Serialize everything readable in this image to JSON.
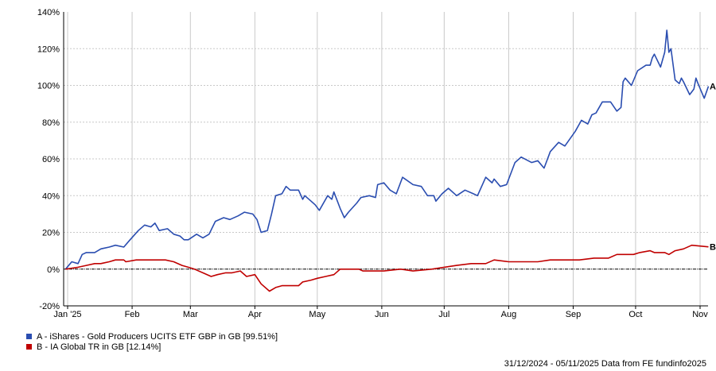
{
  "chart_data": {
    "type": "line",
    "title": "",
    "xlabel": "",
    "ylabel": "",
    "ylim": [
      -20,
      140
    ],
    "xlim": [
      "2024-12-31",
      "2025-11-05"
    ],
    "y_ticks": [
      "140%",
      "120%",
      "100%",
      "80%",
      "60%",
      "40%",
      "20%",
      "0%",
      "-20%"
    ],
    "y_tick_values": [
      140,
      120,
      100,
      80,
      60,
      40,
      20,
      0,
      -20
    ],
    "x_ticks": [
      {
        "label": "Jan '25",
        "date": "2025-01-01"
      },
      {
        "label": "Feb",
        "date": "2025-02-01"
      },
      {
        "label": "Mar",
        "date": "2025-03-01"
      },
      {
        "label": "Apr",
        "date": "2025-04-01"
      },
      {
        "label": "May",
        "date": "2025-05-01"
      },
      {
        "label": "Jun",
        "date": "2025-06-01"
      },
      {
        "label": "Jul",
        "date": "2025-07-01"
      },
      {
        "label": "Aug",
        "date": "2025-08-01"
      },
      {
        "label": "Sep",
        "date": "2025-09-01"
      },
      {
        "label": "Oct",
        "date": "2025-10-01"
      },
      {
        "label": "Nov",
        "date": "2025-11-01"
      }
    ],
    "grid": true,
    "legend_position": "bottom-left",
    "series": [
      {
        "name": "A - iShares - Gold Producers UCITS ETF GBP in GB [99.51%]",
        "end_label": "A",
        "color": "#2a4db0",
        "points": [
          [
            "2024-12-31",
            0
          ],
          [
            "2025-01-03",
            4
          ],
          [
            "2025-01-06",
            3
          ],
          [
            "2025-01-08",
            8
          ],
          [
            "2025-01-10",
            9
          ],
          [
            "2025-01-14",
            9
          ],
          [
            "2025-01-17",
            11
          ],
          [
            "2025-01-21",
            12
          ],
          [
            "2025-01-24",
            13
          ],
          [
            "2025-01-28",
            12
          ],
          [
            "2025-01-31",
            16
          ],
          [
            "2025-02-04",
            21
          ],
          [
            "2025-02-07",
            24
          ],
          [
            "2025-02-10",
            23
          ],
          [
            "2025-02-12",
            25
          ],
          [
            "2025-02-14",
            21
          ],
          [
            "2025-02-18",
            22
          ],
          [
            "2025-02-21",
            19
          ],
          [
            "2025-02-24",
            18
          ],
          [
            "2025-02-26",
            16
          ],
          [
            "2025-02-28",
            16
          ],
          [
            "2025-03-04",
            19
          ],
          [
            "2025-03-07",
            17
          ],
          [
            "2025-03-10",
            19
          ],
          [
            "2025-03-13",
            26
          ],
          [
            "2025-03-17",
            28
          ],
          [
            "2025-03-20",
            27
          ],
          [
            "2025-03-24",
            29
          ],
          [
            "2025-03-27",
            31
          ],
          [
            "2025-03-31",
            30
          ],
          [
            "2025-04-02",
            27
          ],
          [
            "2025-04-04",
            20
          ],
          [
            "2025-04-07",
            21
          ],
          [
            "2025-04-09",
            30
          ],
          [
            "2025-04-11",
            40
          ],
          [
            "2025-04-14",
            41
          ],
          [
            "2025-04-16",
            45
          ],
          [
            "2025-04-18",
            43
          ],
          [
            "2025-04-22",
            43
          ],
          [
            "2025-04-24",
            38
          ],
          [
            "2025-04-25",
            40
          ],
          [
            "2025-04-28",
            37
          ],
          [
            "2025-04-30",
            35
          ],
          [
            "2025-05-02",
            32
          ],
          [
            "2025-05-06",
            40
          ],
          [
            "2025-05-08",
            38
          ],
          [
            "2025-05-09",
            42
          ],
          [
            "2025-05-12",
            33
          ],
          [
            "2025-05-14",
            28
          ],
          [
            "2025-05-16",
            31
          ],
          [
            "2025-05-20",
            36
          ],
          [
            "2025-05-22",
            39
          ],
          [
            "2025-05-26",
            40
          ],
          [
            "2025-05-29",
            39
          ],
          [
            "2025-05-30",
            46
          ],
          [
            "2025-06-02",
            47
          ],
          [
            "2025-06-05",
            43
          ],
          [
            "2025-06-08",
            41
          ],
          [
            "2025-06-11",
            50
          ],
          [
            "2025-06-16",
            46
          ],
          [
            "2025-06-20",
            45
          ],
          [
            "2025-06-23",
            40
          ],
          [
            "2025-06-26",
            40
          ],
          [
            "2025-06-27",
            37
          ],
          [
            "2025-06-30",
            41
          ],
          [
            "2025-07-03",
            44
          ],
          [
            "2025-07-07",
            40
          ],
          [
            "2025-07-11",
            43
          ],
          [
            "2025-07-15",
            41
          ],
          [
            "2025-07-17",
            40
          ],
          [
            "2025-07-21",
            50
          ],
          [
            "2025-07-24",
            47
          ],
          [
            "2025-07-25",
            49
          ],
          [
            "2025-07-28",
            45
          ],
          [
            "2025-07-31",
            46
          ],
          [
            "2025-08-04",
            58
          ],
          [
            "2025-08-07",
            61
          ],
          [
            "2025-08-12",
            58
          ],
          [
            "2025-08-15",
            59
          ],
          [
            "2025-08-18",
            55
          ],
          [
            "2025-08-21",
            64
          ],
          [
            "2025-08-25",
            69
          ],
          [
            "2025-08-28",
            67
          ],
          [
            "2025-09-02",
            75
          ],
          [
            "2025-09-05",
            81
          ],
          [
            "2025-09-08",
            79
          ],
          [
            "2025-09-10",
            84
          ],
          [
            "2025-09-12",
            85
          ],
          [
            "2025-09-15",
            91
          ],
          [
            "2025-09-19",
            91
          ],
          [
            "2025-09-22",
            86
          ],
          [
            "2025-09-24",
            88
          ],
          [
            "2025-09-25",
            102
          ],
          [
            "2025-09-26",
            104
          ],
          [
            "2025-09-29",
            100
          ],
          [
            "2025-10-02",
            108
          ],
          [
            "2025-10-06",
            111
          ],
          [
            "2025-10-08",
            111
          ],
          [
            "2025-10-09",
            115
          ],
          [
            "2025-10-10",
            117
          ],
          [
            "2025-10-13",
            110
          ],
          [
            "2025-10-15",
            118
          ],
          [
            "2025-10-16",
            130
          ],
          [
            "2025-10-17",
            118
          ],
          [
            "2025-10-18",
            120
          ],
          [
            "2025-10-20",
            103
          ],
          [
            "2025-10-22",
            101
          ],
          [
            "2025-10-23",
            104
          ],
          [
            "2025-10-24",
            102
          ],
          [
            "2025-10-27",
            95
          ],
          [
            "2025-10-29",
            98
          ],
          [
            "2025-10-30",
            104
          ],
          [
            "2025-10-31",
            101
          ],
          [
            "2025-11-03",
            93
          ],
          [
            "2025-11-05",
            99.51
          ]
        ]
      },
      {
        "name": "B - IA Global TR in GB [12.14%]",
        "end_label": "B",
        "color": "#c00000",
        "points": [
          [
            "2024-12-31",
            0
          ],
          [
            "2025-01-06",
            1
          ],
          [
            "2025-01-10",
            2
          ],
          [
            "2025-01-14",
            3
          ],
          [
            "2025-01-17",
            3
          ],
          [
            "2025-01-21",
            4
          ],
          [
            "2025-01-24",
            5
          ],
          [
            "2025-01-28",
            5
          ],
          [
            "2025-01-29",
            4
          ],
          [
            "2025-02-03",
            5
          ],
          [
            "2025-02-07",
            5
          ],
          [
            "2025-02-12",
            5
          ],
          [
            "2025-02-17",
            5
          ],
          [
            "2025-02-21",
            4
          ],
          [
            "2025-02-25",
            2
          ],
          [
            "2025-02-28",
            1
          ],
          [
            "2025-03-03",
            0
          ],
          [
            "2025-03-07",
            -2
          ],
          [
            "2025-03-11",
            -4
          ],
          [
            "2025-03-14",
            -3
          ],
          [
            "2025-03-18",
            -2
          ],
          [
            "2025-03-21",
            -2
          ],
          [
            "2025-03-25",
            -1
          ],
          [
            "2025-03-28",
            -4
          ],
          [
            "2025-04-01",
            -3
          ],
          [
            "2025-04-04",
            -8
          ],
          [
            "2025-04-08",
            -12
          ],
          [
            "2025-04-11",
            -10
          ],
          [
            "2025-04-14",
            -9
          ],
          [
            "2025-04-16",
            -9
          ],
          [
            "2025-04-22",
            -9
          ],
          [
            "2025-04-24",
            -7
          ],
          [
            "2025-04-28",
            -6
          ],
          [
            "2025-05-01",
            -5
          ],
          [
            "2025-05-05",
            -4
          ],
          [
            "2025-05-09",
            -3
          ],
          [
            "2025-05-12",
            0
          ],
          [
            "2025-05-16",
            0
          ],
          [
            "2025-05-21",
            0
          ],
          [
            "2025-05-23",
            -1
          ],
          [
            "2025-05-28",
            -1
          ],
          [
            "2025-06-02",
            -1
          ],
          [
            "2025-06-10",
            0
          ],
          [
            "2025-06-16",
            -1
          ],
          [
            "2025-06-25",
            0
          ],
          [
            "2025-07-01",
            1
          ],
          [
            "2025-07-07",
            2
          ],
          [
            "2025-07-14",
            3
          ],
          [
            "2025-07-21",
            3
          ],
          [
            "2025-07-25",
            5
          ],
          [
            "2025-08-01",
            4
          ],
          [
            "2025-08-08",
            4
          ],
          [
            "2025-08-15",
            4
          ],
          [
            "2025-08-21",
            5
          ],
          [
            "2025-08-28",
            5
          ],
          [
            "2025-09-04",
            5
          ],
          [
            "2025-09-11",
            6
          ],
          [
            "2025-09-18",
            6
          ],
          [
            "2025-09-22",
            8
          ],
          [
            "2025-09-30",
            8
          ],
          [
            "2025-10-03",
            9
          ],
          [
            "2025-10-08",
            10
          ],
          [
            "2025-10-10",
            9
          ],
          [
            "2025-10-15",
            9
          ],
          [
            "2025-10-17",
            8
          ],
          [
            "2025-10-20",
            10
          ],
          [
            "2025-10-24",
            11
          ],
          [
            "2025-10-28",
            13
          ],
          [
            "2025-11-05",
            12.14
          ]
        ]
      }
    ],
    "zero_line": true,
    "footer": "31/12/2024 - 05/11/2025 Data from FE fundinfo2025"
  }
}
